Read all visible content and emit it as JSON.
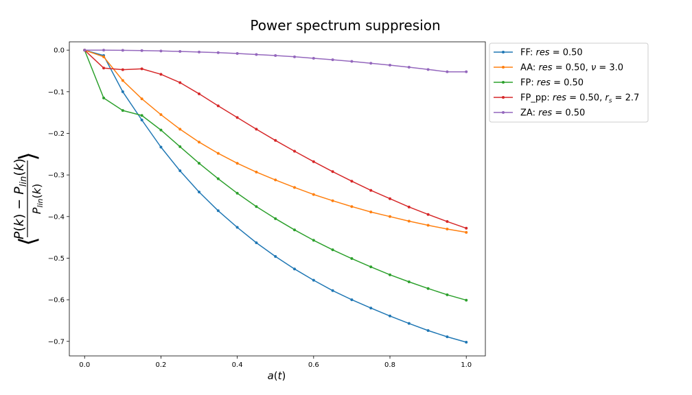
{
  "chart_data": {
    "type": "line",
    "title": "Power spectrum suppresion",
    "xlabel": "a(t)",
    "ylabel": "⟨(P(k) − P_lin(k)) / P_lin(k)⟩",
    "xlim": [
      -0.04,
      1.05
    ],
    "ylim": [
      -0.735,
      0.02
    ],
    "grid": false,
    "legend_position": "outside-right",
    "xticks": [
      "0.0",
      "0.2",
      "0.4",
      "0.6",
      "0.8",
      "1.0"
    ],
    "yticks": [
      "0.0",
      "−0.1",
      "−0.2",
      "−0.3",
      "−0.4",
      "−0.5",
      "−0.6",
      "−0.7"
    ],
    "x": [
      0.0,
      0.05,
      0.1,
      0.15,
      0.2,
      0.25,
      0.3,
      0.35,
      0.4,
      0.45,
      0.5,
      0.55,
      0.6,
      0.65,
      0.7,
      0.75,
      0.8,
      0.85,
      0.9,
      0.95,
      1.0
    ],
    "series": [
      {
        "name": "FF: res = 0.50",
        "label_prefix": "FF: ",
        "label_var": "res",
        "label_value": " = 0.50",
        "label_extra": "",
        "color": "#1f77b4",
        "values": [
          0.0,
          -0.013,
          -0.1,
          -0.168,
          -0.233,
          -0.29,
          -0.341,
          -0.386,
          -0.426,
          -0.463,
          -0.496,
          -0.526,
          -0.553,
          -0.578,
          -0.6,
          -0.62,
          -0.639,
          -0.657,
          -0.674,
          -0.689,
          -0.702
        ]
      },
      {
        "name": "AA: res = 0.50, ν = 3.0",
        "label_prefix": "AA: ",
        "label_var": "res",
        "label_value": " = 0.50, ",
        "label_extra": "ν = 3.0",
        "color": "#ff7f0e",
        "values": [
          0.0,
          -0.016,
          -0.073,
          -0.117,
          -0.155,
          -0.19,
          -0.221,
          -0.248,
          -0.272,
          -0.293,
          -0.312,
          -0.33,
          -0.347,
          -0.362,
          -0.376,
          -0.389,
          -0.4,
          -0.411,
          -0.421,
          -0.43,
          -0.438
        ]
      },
      {
        "name": "FP: res = 0.50",
        "label_prefix": "FP: ",
        "label_var": "res",
        "label_value": " = 0.50",
        "label_extra": "",
        "color": "#2ca02c",
        "values": [
          0.0,
          -0.115,
          -0.145,
          -0.157,
          -0.192,
          -0.232,
          -0.272,
          -0.309,
          -0.344,
          -0.376,
          -0.405,
          -0.432,
          -0.457,
          -0.48,
          -0.501,
          -0.521,
          -0.54,
          -0.557,
          -0.573,
          -0.588,
          -0.601
        ]
      },
      {
        "name": "FP_pp: res = 0.50, r_s = 2.7",
        "label_prefix": "FP_pp: ",
        "label_var": "res",
        "label_value": " = 0.50, ",
        "label_extra": "rs = 2.7",
        "color": "#d62728",
        "values": [
          0.0,
          -0.043,
          -0.047,
          -0.045,
          -0.058,
          -0.078,
          -0.105,
          -0.134,
          -0.162,
          -0.19,
          -0.217,
          -0.243,
          -0.268,
          -0.292,
          -0.315,
          -0.337,
          -0.357,
          -0.377,
          -0.395,
          -0.412,
          -0.428
        ]
      },
      {
        "name": "ZA: res = 0.50",
        "label_prefix": "ZA: ",
        "label_var": "res",
        "label_value": " = 0.50",
        "label_extra": "",
        "color": "#9467bd",
        "values": [
          0.0,
          0.0,
          -0.0005,
          -0.001,
          -0.002,
          -0.003,
          -0.0045,
          -0.006,
          -0.008,
          -0.0105,
          -0.013,
          -0.016,
          -0.0195,
          -0.023,
          -0.027,
          -0.0315,
          -0.036,
          -0.041,
          -0.0465,
          -0.052,
          -0.052
        ]
      }
    ]
  }
}
